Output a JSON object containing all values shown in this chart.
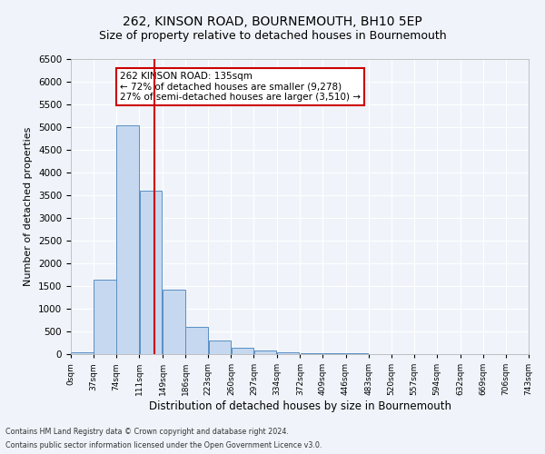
{
  "title": "262, KINSON ROAD, BOURNEMOUTH, BH10 5EP",
  "subtitle": "Size of property relative to detached houses in Bournemouth",
  "xlabel": "Distribution of detached houses by size in Bournemouth",
  "ylabel": "Number of detached properties",
  "bin_labels": [
    "0sqm",
    "37sqm",
    "74sqm",
    "111sqm",
    "149sqm",
    "186sqm",
    "223sqm",
    "260sqm",
    "297sqm",
    "334sqm",
    "372sqm",
    "409sqm",
    "446sqm",
    "483sqm",
    "520sqm",
    "557sqm",
    "594sqm",
    "632sqm",
    "669sqm",
    "706sqm",
    "743sqm"
  ],
  "bar_values": [
    50,
    1650,
    5050,
    3600,
    1420,
    610,
    295,
    140,
    75,
    35,
    30,
    20,
    15,
    0,
    0,
    0,
    0,
    0,
    0,
    0
  ],
  "bin_edges": [
    0,
    37,
    74,
    111,
    149,
    186,
    223,
    260,
    297,
    334,
    372,
    409,
    446,
    483,
    520,
    557,
    594,
    632,
    669,
    706,
    743
  ],
  "bar_color": "#c5d8f0",
  "bar_edge_color": "#5a8fc3",
  "vline_x": 135,
  "vline_color": "#cc0000",
  "ylim": [
    0,
    6500
  ],
  "yticks": [
    0,
    500,
    1000,
    1500,
    2000,
    2500,
    3000,
    3500,
    4000,
    4500,
    5000,
    5500,
    6000,
    6500
  ],
  "annotation_title": "262 KINSON ROAD: 135sqm",
  "annotation_line1": "← 72% of detached houses are smaller (9,278)",
  "annotation_line2": "27% of semi-detached houses are larger (3,510) →",
  "annotation_box_color": "#cc0000",
  "footer_line1": "Contains HM Land Registry data © Crown copyright and database right 2024.",
  "footer_line2": "Contains public sector information licensed under the Open Government Licence v3.0.",
  "bg_color": "#f0f4fa",
  "grid_color": "#ffffff",
  "title_fontsize": 10,
  "subtitle_fontsize": 9,
  "axis_label_fontsize": 8
}
